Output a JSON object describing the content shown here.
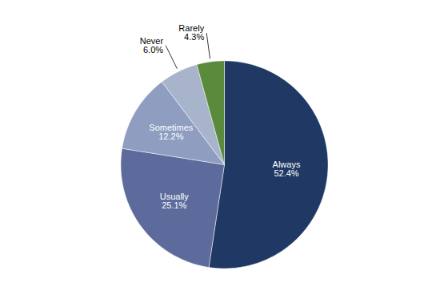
{
  "chart_data": {
    "type": "pie",
    "categories": [
      "Always",
      "Usually",
      "Sometimes",
      "Never",
      "Rarely"
    ],
    "values": [
      52.4,
      25.1,
      12.2,
      6.0,
      4.3
    ],
    "value_labels": [
      "52.4%",
      "25.1%",
      "12.2%",
      "6.0%",
      "4.3%"
    ],
    "colors": [
      "#1f3864",
      "#5c6b9c",
      "#8e9dc0",
      "#a8b4cc",
      "#5a8a3c"
    ],
    "data_labels": true
  }
}
